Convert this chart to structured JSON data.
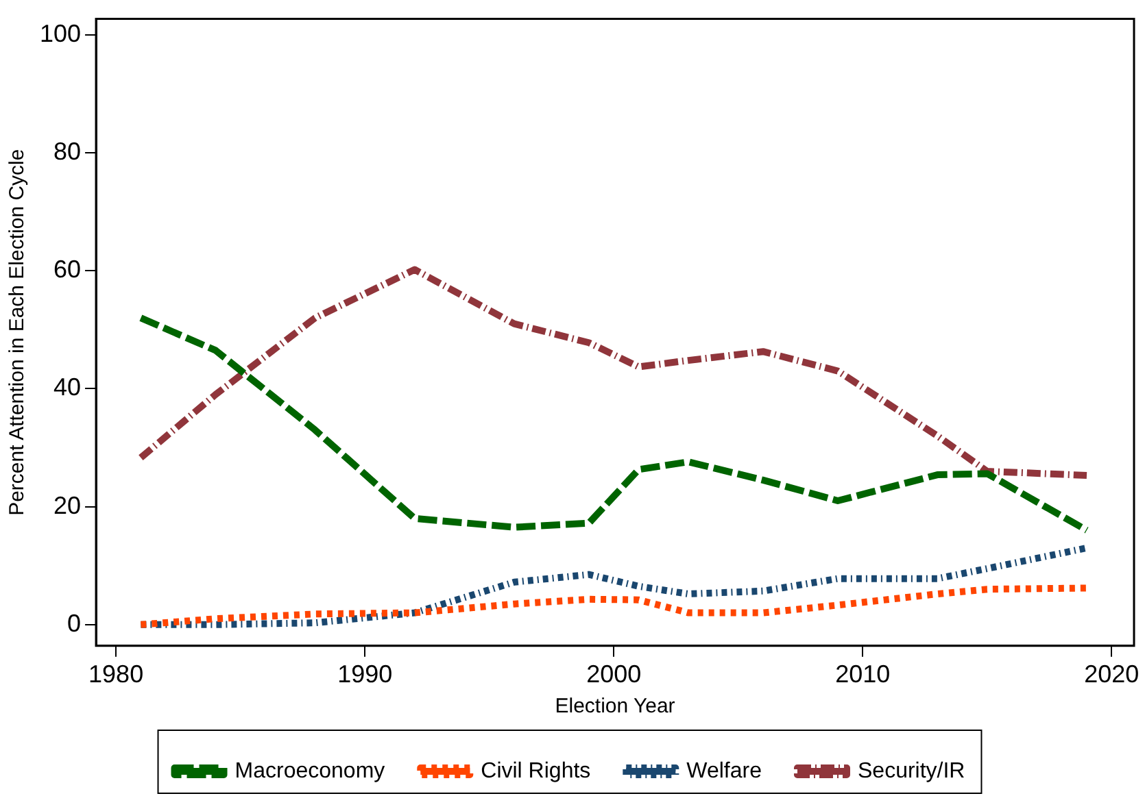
{
  "chart_data": {
    "type": "line",
    "xlabel": "Election Year",
    "ylabel": "Percent Attention in Each Election Cycle",
    "x": [
      1981,
      1984,
      1988,
      1992,
      1996,
      1999,
      2001,
      2003,
      2006,
      2009,
      2013,
      2015,
      2019
    ],
    "series": [
      {
        "name": "Macroeconomy",
        "color": "#006400",
        "line_style": "dashed",
        "values": [
          52,
          46.5,
          33,
          18,
          16.5,
          17.2,
          26.3,
          27.6,
          24.5,
          21,
          25.4,
          25.6,
          16
        ]
      },
      {
        "name": "Civil Rights",
        "color": "#ff4500",
        "line_style": "dotted",
        "values": [
          0,
          1,
          1.8,
          2,
          3.5,
          4.3,
          4.2,
          2,
          2,
          3.3,
          5.2,
          6,
          6.2
        ]
      },
      {
        "name": "Welfare",
        "color": "#1a476f",
        "line_style": "dotted",
        "values": [
          0,
          0,
          0.3,
          2,
          7.2,
          8.5,
          6.5,
          5.2,
          5.7,
          7.8,
          7.8,
          9.5,
          13
        ]
      },
      {
        "name": "Security/IR",
        "color": "#90353b",
        "line_style": "dashed",
        "values": [
          28.3,
          39,
          52,
          60.2,
          51,
          47.8,
          43.7,
          44.8,
          46.3,
          43,
          32,
          26,
          25.3
        ]
      }
    ],
    "xlim": [
      1979.2,
      2020.9
    ],
    "xticks": [
      1980,
      1990,
      2000,
      2010,
      2020
    ],
    "ylim": [
      -3.6,
      102.7
    ],
    "yticks": [
      0,
      20,
      40,
      60,
      80,
      100
    ],
    "grid": false,
    "legend": "bottom",
    "marker": "none"
  }
}
